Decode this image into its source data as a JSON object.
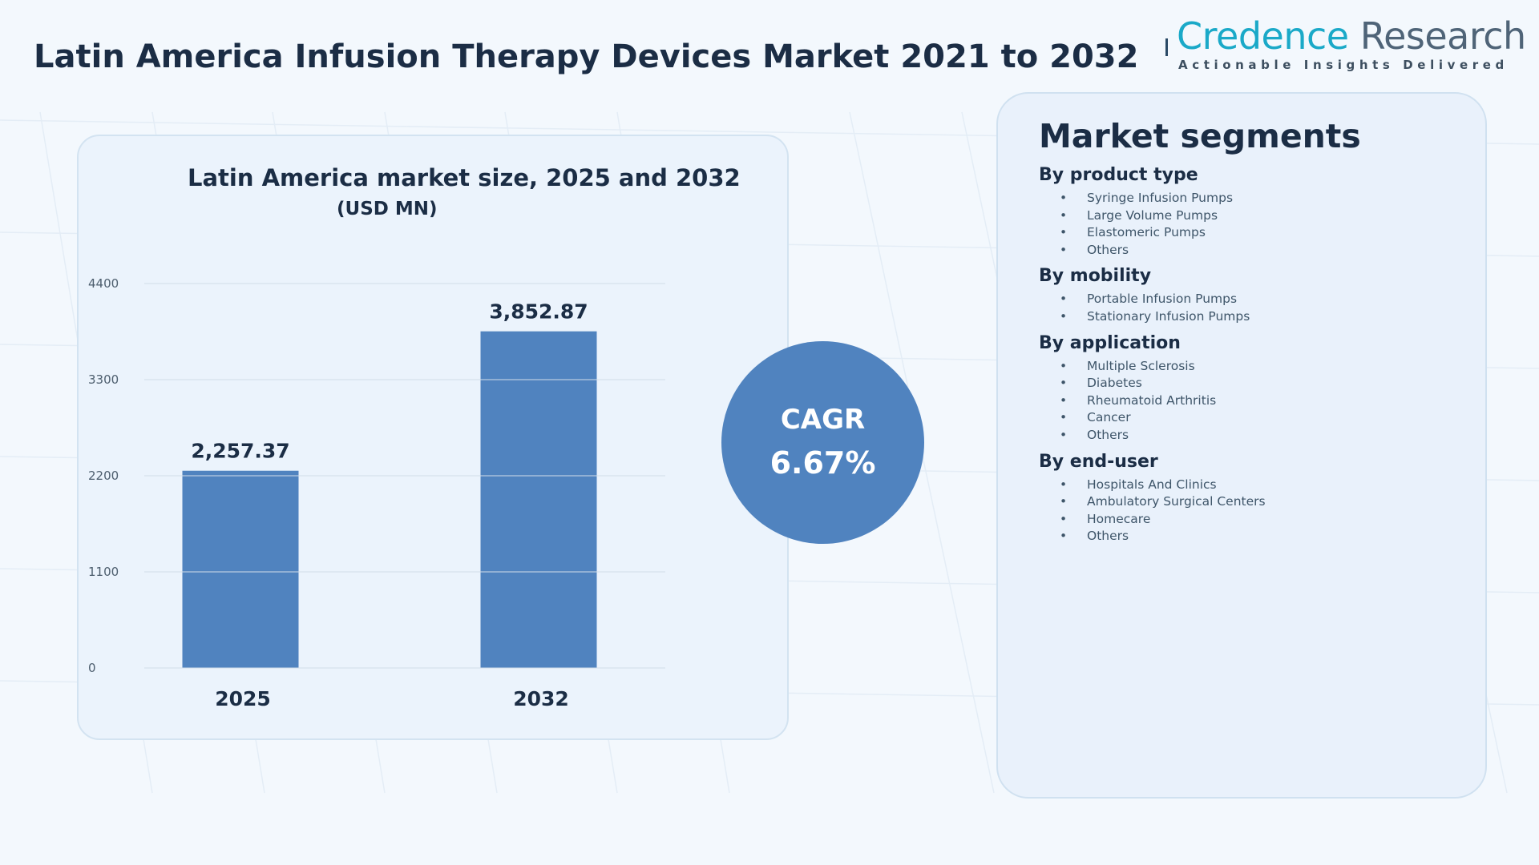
{
  "page": {
    "title": "Latin America Infusion Therapy Devices Market 2021 to 2032"
  },
  "logo": {
    "name_part1": "Credence",
    "name_part2": "Research",
    "tagline": "Actionable Insights Delivered",
    "colors": {
      "primary": "#1aa9c8",
      "secondary": "#4f6478"
    }
  },
  "chart_data": {
    "type": "bar",
    "title": "Latin America market size, 2025 and 2032",
    "unit": "(USD MN)",
    "categories": [
      "2025",
      "2032"
    ],
    "values": [
      2257.37,
      3852.87
    ],
    "data_labels": [
      "2,257.37",
      "3,852.87"
    ],
    "yticks": [
      0,
      1100,
      2200,
      3300,
      4400
    ],
    "ylim": [
      0,
      4400
    ],
    "grid": true,
    "bar_color": "#5083bf",
    "xlabel": "",
    "ylabel": ""
  },
  "cagr": {
    "label": "CAGR",
    "value": "6.67%"
  },
  "segments": {
    "title": "Market segments",
    "groups": [
      {
        "heading": "By product type",
        "items": [
          "Syringe Infusion Pumps",
          "Large Volume Pumps",
          "Elastomeric Pumps",
          "Others"
        ]
      },
      {
        "heading": "By mobility",
        "items": [
          "Portable Infusion Pumps",
          "Stationary Infusion Pumps"
        ]
      },
      {
        "heading": "By application",
        "items": [
          "Multiple Sclerosis",
          "Diabetes",
          "Rheumatoid Arthritis",
          "Cancer",
          "Others"
        ]
      },
      {
        "heading": "By end-user",
        "items": [
          "Hospitals And Clinics",
          "Ambulatory Surgical Centers",
          "Homecare",
          "Others"
        ]
      }
    ]
  }
}
